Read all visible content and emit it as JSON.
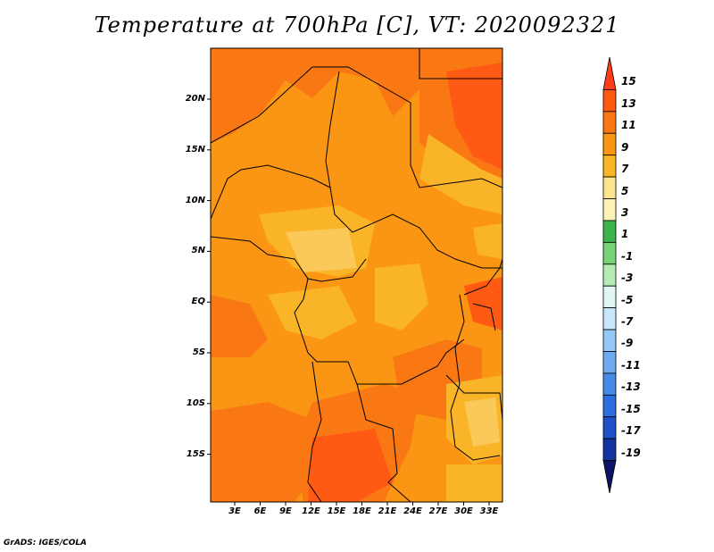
{
  "title": "Temperature at 700hPa [C], VT: 2020092321",
  "credit": "GrADS: IGES/COLA",
  "map": {
    "y_ticks": [
      "20N",
      "15N",
      "10N",
      "5N",
      "EQ",
      "5S",
      "10S",
      "15S"
    ],
    "x_ticks": [
      "3E",
      "6E",
      "9E",
      "12E",
      "15E",
      "18E",
      "21E",
      "24E",
      "27E",
      "30E",
      "33E"
    ]
  },
  "colorbar": {
    "labels": [
      "15",
      "13",
      "11",
      "9",
      "7",
      "5",
      "3",
      "1",
      "-1",
      "-3",
      "-5",
      "-7",
      "-9",
      "-11",
      "-13",
      "-15",
      "-17",
      "-19"
    ],
    "colors": [
      "#ff3d1a",
      "#ff5a14",
      "#fa7814",
      "#fa9614",
      "#fab428",
      "#fde38e",
      "#fdf3b8",
      "#3cb44b",
      "#78d278",
      "#b4ebb4",
      "#e1f5f5",
      "#c8e6fa",
      "#96c8f5",
      "#6eaaf0",
      "#468ce6",
      "#2d6edc",
      "#1e50c8",
      "#1432a0",
      "#0a1464"
    ]
  }
}
